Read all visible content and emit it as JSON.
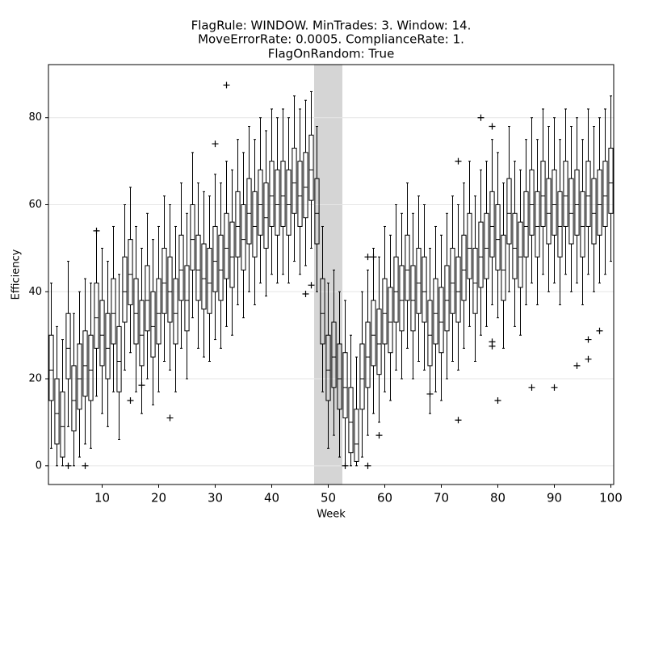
{
  "chart_data": {
    "type": "box",
    "title": [
      "FlagRule: WINDOW. MinTrades: 3. Window: 14.",
      "MoveErrorRate: 0.0005. ComplianceRate: 1.",
      "FlagOnRandom: True"
    ],
    "xlabel": "Week",
    "ylabel": "Efficiency",
    "xlim": [
      0.5,
      100.5
    ],
    "ylim": [
      -4.3,
      92.2
    ],
    "xticks": [
      10,
      20,
      30,
      40,
      50,
      60,
      70,
      80,
      90,
      100
    ],
    "yticks": [
      0,
      20,
      40,
      60,
      80
    ],
    "grid": true,
    "color": "#000000",
    "shade_color": "#d3d3d3",
    "shaded_span": [
      47.5,
      52.5
    ],
    "x": [
      1,
      2,
      3,
      4,
      5,
      6,
      7,
      8,
      9,
      10,
      11,
      12,
      13,
      14,
      15,
      16,
      17,
      18,
      19,
      20,
      21,
      22,
      23,
      24,
      25,
      26,
      27,
      28,
      29,
      30,
      31,
      32,
      33,
      34,
      35,
      36,
      37,
      38,
      39,
      40,
      41,
      42,
      43,
      44,
      45,
      46,
      47,
      48,
      49,
      50,
      51,
      52,
      53,
      54,
      55,
      56,
      57,
      58,
      59,
      60,
      61,
      62,
      63,
      64,
      65,
      66,
      67,
      68,
      69,
      70,
      71,
      72,
      73,
      74,
      75,
      76,
      77,
      78,
      79,
      80,
      81,
      82,
      83,
      84,
      85,
      86,
      87,
      88,
      89,
      90,
      91,
      92,
      93,
      94,
      95,
      96,
      97,
      98,
      99,
      100
    ],
    "low": [
      4,
      0,
      0,
      9,
      0,
      2,
      5,
      4,
      16,
      12,
      9,
      17,
      6,
      22,
      26,
      17,
      12,
      20,
      14,
      17,
      24,
      22,
      17,
      27,
      20,
      34,
      27,
      25,
      24,
      29,
      27,
      32,
      30,
      37,
      34,
      40,
      37,
      42,
      39,
      44,
      42,
      44,
      42,
      47,
      44,
      46,
      50,
      40,
      17,
      4,
      7,
      2,
      0,
      0,
      0,
      2,
      7,
      12,
      10,
      17,
      15,
      22,
      20,
      27,
      20,
      24,
      22,
      12,
      17,
      15,
      20,
      24,
      22,
      27,
      32,
      24,
      30,
      32,
      37,
      34,
      27,
      40,
      32,
      30,
      37,
      42,
      37,
      44,
      40,
      42,
      37,
      44,
      40,
      42,
      37,
      44,
      40,
      42,
      44,
      47
    ],
    "q1": [
      15,
      5,
      2,
      20,
      8,
      13,
      16,
      15,
      27,
      23,
      20,
      28,
      17,
      33,
      37,
      28,
      23,
      31,
      25,
      28,
      35,
      33,
      28,
      38,
      31,
      45,
      38,
      36,
      35,
      40,
      38,
      43,
      41,
      48,
      45,
      51,
      48,
      53,
      50,
      55,
      53,
      55,
      53,
      58,
      55,
      57,
      61,
      51,
      28,
      15,
      18,
      13,
      11,
      3,
      1,
      13,
      18,
      23,
      21,
      28,
      26,
      33,
      31,
      38,
      31,
      35,
      33,
      23,
      28,
      26,
      31,
      35,
      33,
      38,
      43,
      35,
      41,
      43,
      48,
      45,
      38,
      51,
      43,
      41,
      48,
      53,
      48,
      55,
      51,
      53,
      48,
      55,
      51,
      53,
      48,
      55,
      51,
      53,
      55,
      58
    ],
    "median": [
      22,
      12,
      9,
      27,
      15,
      20,
      23,
      22,
      34,
      30,
      27,
      35,
      24,
      40,
      44,
      35,
      30,
      38,
      32,
      35,
      42,
      40,
      35,
      45,
      38,
      52,
      45,
      43,
      42,
      47,
      45,
      50,
      48,
      55,
      52,
      58,
      55,
      60,
      57,
      62,
      60,
      62,
      60,
      65,
      62,
      64,
      68,
      58,
      35,
      22,
      25,
      20,
      18,
      10,
      5,
      20,
      25,
      30,
      28,
      35,
      33,
      40,
      38,
      45,
      38,
      42,
      40,
      30,
      35,
      33,
      38,
      42,
      40,
      45,
      50,
      42,
      48,
      50,
      55,
      52,
      45,
      58,
      50,
      48,
      55,
      60,
      55,
      62,
      58,
      60,
      55,
      62,
      58,
      60,
      55,
      62,
      58,
      60,
      62,
      65
    ],
    "q3": [
      30,
      20,
      17,
      35,
      23,
      28,
      31,
      30,
      42,
      38,
      35,
      43,
      32,
      48,
      52,
      43,
      38,
      46,
      40,
      43,
      50,
      48,
      43,
      53,
      46,
      60,
      53,
      51,
      50,
      55,
      53,
      58,
      56,
      63,
      60,
      66,
      63,
      68,
      65,
      70,
      68,
      70,
      68,
      73,
      70,
      72,
      76,
      66,
      43,
      30,
      33,
      28,
      26,
      18,
      13,
      28,
      33,
      38,
      36,
      43,
      41,
      48,
      46,
      53,
      46,
      50,
      48,
      38,
      43,
      41,
      46,
      50,
      48,
      53,
      58,
      50,
      56,
      58,
      63,
      60,
      53,
      66,
      58,
      56,
      63,
      68,
      63,
      70,
      66,
      68,
      63,
      70,
      66,
      68,
      63,
      70,
      66,
      68,
      70,
      73
    ],
    "high": [
      42,
      32,
      29,
      47,
      35,
      40,
      43,
      42,
      54,
      50,
      47,
      55,
      44,
      60,
      64,
      55,
      50,
      58,
      52,
      55,
      62,
      60,
      55,
      65,
      58,
      72,
      65,
      63,
      62,
      67,
      65,
      70,
      68,
      75,
      72,
      78,
      75,
      80,
      77,
      82,
      80,
      82,
      80,
      85,
      82,
      84,
      86,
      78,
      55,
      42,
      45,
      40,
      38,
      30,
      25,
      40,
      45,
      50,
      48,
      55,
      53,
      60,
      58,
      65,
      58,
      62,
      60,
      50,
      55,
      53,
      58,
      62,
      60,
      65,
      70,
      62,
      68,
      70,
      75,
      72,
      65,
      78,
      70,
      68,
      75,
      80,
      75,
      82,
      78,
      80,
      75,
      82,
      78,
      80,
      75,
      82,
      78,
      80,
      82,
      85
    ],
    "flier_x": [
      4,
      7,
      9,
      15,
      17,
      22,
      30,
      32,
      46,
      47,
      53,
      57,
      57,
      58,
      59,
      68,
      73,
      73,
      77,
      79,
      79,
      79,
      80,
      86,
      90,
      94,
      96,
      96,
      98
    ],
    "flier_y": [
      0,
      0,
      54,
      15,
      18.5,
      11,
      74,
      87.5,
      39.5,
      41.5,
      0,
      0,
      48,
      48,
      7,
      16.5,
      70,
      10.5,
      80,
      78,
      28.5,
      27.5,
      15,
      18,
      18,
      23,
      29,
      24.5,
      31
    ]
  }
}
